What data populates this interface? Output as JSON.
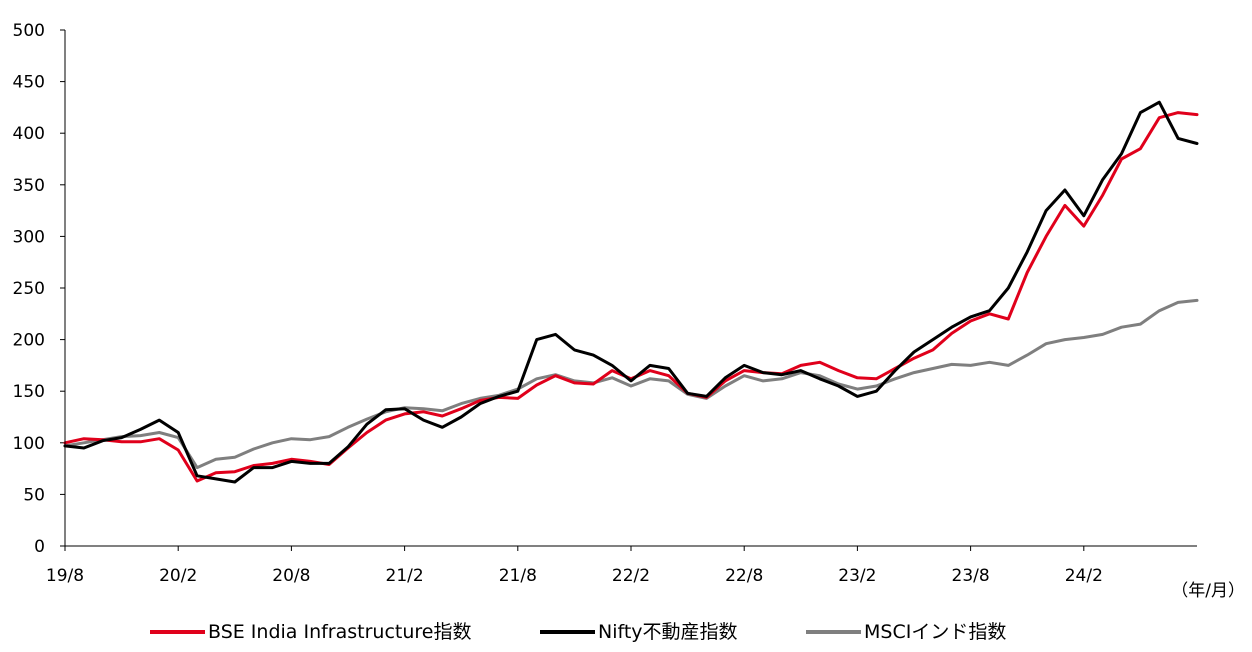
{
  "chart_data": {
    "type": "line",
    "title": "",
    "xlabel": "",
    "ylabel": "",
    "x_unit_label": "（年/月）",
    "ylim": [
      0,
      500
    ],
    "yticks": [
      0,
      50,
      100,
      150,
      200,
      250,
      300,
      350,
      400,
      450,
      500
    ],
    "xlim": [
      "2019-08",
      "2024-08"
    ],
    "xtick_labels": [
      "19/8",
      "20/2",
      "20/8",
      "21/2",
      "21/8",
      "22/2",
      "22/8",
      "23/2",
      "23/8",
      "24/2"
    ],
    "grid": false,
    "legend_position": "bottom",
    "series": [
      {
        "name": "BSE India Infrastructure指数",
        "color": "#e0001b",
        "points": [
          [
            "2019-08",
            100
          ],
          [
            "2019-09",
            104
          ],
          [
            "2019-10",
            103
          ],
          [
            "2019-11",
            101
          ],
          [
            "2019-12",
            101
          ],
          [
            "2020-01",
            104
          ],
          [
            "2020-02",
            93
          ],
          [
            "2020-03",
            63
          ],
          [
            "2020-04",
            71
          ],
          [
            "2020-05",
            72
          ],
          [
            "2020-06",
            78
          ],
          [
            "2020-07",
            80
          ],
          [
            "2020-08",
            84
          ],
          [
            "2020-09",
            82
          ],
          [
            "2020-10",
            79
          ],
          [
            "2020-11",
            95
          ],
          [
            "2020-12",
            110
          ],
          [
            "2021-01",
            122
          ],
          [
            "2021-02",
            128
          ],
          [
            "2021-03",
            130
          ],
          [
            "2021-04",
            126
          ],
          [
            "2021-05",
            133
          ],
          [
            "2021-06",
            141
          ],
          [
            "2021-07",
            144
          ],
          [
            "2021-08",
            143
          ],
          [
            "2021-09",
            156
          ],
          [
            "2021-10",
            165
          ],
          [
            "2021-11",
            158
          ],
          [
            "2021-12",
            157
          ],
          [
            "2022-01",
            170
          ],
          [
            "2022-02",
            162
          ],
          [
            "2022-03",
            170
          ],
          [
            "2022-04",
            165
          ],
          [
            "2022-05",
            148
          ],
          [
            "2022-06",
            144
          ],
          [
            "2022-07",
            160
          ],
          [
            "2022-08",
            170
          ],
          [
            "2022-09",
            168
          ],
          [
            "2022-10",
            167
          ],
          [
            "2022-11",
            175
          ],
          [
            "2022-12",
            178
          ],
          [
            "2023-01",
            170
          ],
          [
            "2023-02",
            163
          ],
          [
            "2023-03",
            162
          ],
          [
            "2023-04",
            172
          ],
          [
            "2023-05",
            182
          ],
          [
            "2023-06",
            190
          ],
          [
            "2023-07",
            206
          ],
          [
            "2023-08",
            218
          ],
          [
            "2023-09",
            225
          ],
          [
            "2023-10",
            220
          ],
          [
            "2023-11",
            265
          ],
          [
            "2023-12",
            300
          ],
          [
            "2024-01",
            330
          ],
          [
            "2024-02",
            310
          ],
          [
            "2024-03",
            340
          ],
          [
            "2024-04",
            375
          ],
          [
            "2024-05",
            385
          ],
          [
            "2024-06",
            415
          ],
          [
            "2024-07",
            420
          ],
          [
            "2024-08",
            418
          ]
        ]
      },
      {
        "name": "Nifty不動産指数",
        "color": "#000000",
        "points": [
          [
            "2019-08",
            97
          ],
          [
            "2019-09",
            95
          ],
          [
            "2019-10",
            102
          ],
          [
            "2019-11",
            105
          ],
          [
            "2019-12",
            113
          ],
          [
            "2020-01",
            122
          ],
          [
            "2020-02",
            110
          ],
          [
            "2020-03",
            68
          ],
          [
            "2020-04",
            65
          ],
          [
            "2020-05",
            62
          ],
          [
            "2020-06",
            76
          ],
          [
            "2020-07",
            76
          ],
          [
            "2020-08",
            82
          ],
          [
            "2020-09",
            80
          ],
          [
            "2020-10",
            80
          ],
          [
            "2020-11",
            96
          ],
          [
            "2020-12",
            118
          ],
          [
            "2021-01",
            132
          ],
          [
            "2021-02",
            133
          ],
          [
            "2021-03",
            122
          ],
          [
            "2021-04",
            115
          ],
          [
            "2021-05",
            125
          ],
          [
            "2021-06",
            138
          ],
          [
            "2021-07",
            145
          ],
          [
            "2021-08",
            150
          ],
          [
            "2021-09",
            200
          ],
          [
            "2021-10",
            205
          ],
          [
            "2021-11",
            190
          ],
          [
            "2021-12",
            185
          ],
          [
            "2022-01",
            175
          ],
          [
            "2022-02",
            160
          ],
          [
            "2022-03",
            175
          ],
          [
            "2022-04",
            172
          ],
          [
            "2022-05",
            148
          ],
          [
            "2022-06",
            145
          ],
          [
            "2022-07",
            163
          ],
          [
            "2022-08",
            175
          ],
          [
            "2022-09",
            168
          ],
          [
            "2022-10",
            166
          ],
          [
            "2022-11",
            170
          ],
          [
            "2022-12",
            162
          ],
          [
            "2023-01",
            155
          ],
          [
            "2023-02",
            145
          ],
          [
            "2023-03",
            150
          ],
          [
            "2023-04",
            170
          ],
          [
            "2023-05",
            188
          ],
          [
            "2023-06",
            200
          ],
          [
            "2023-07",
            212
          ],
          [
            "2023-08",
            222
          ],
          [
            "2023-09",
            228
          ],
          [
            "2023-10",
            250
          ],
          [
            "2023-11",
            285
          ],
          [
            "2023-12",
            325
          ],
          [
            "2024-01",
            345
          ],
          [
            "2024-02",
            320
          ],
          [
            "2024-03",
            355
          ],
          [
            "2024-04",
            380
          ],
          [
            "2024-05",
            420
          ],
          [
            "2024-06",
            430
          ],
          [
            "2024-07",
            395
          ],
          [
            "2024-08",
            390
          ]
        ]
      },
      {
        "name": "MSCIインド指数",
        "color": "#7f7f7f",
        "points": [
          [
            "2019-08",
            97
          ],
          [
            "2019-09",
            100
          ],
          [
            "2019-10",
            103
          ],
          [
            "2019-11",
            106
          ],
          [
            "2019-12",
            107
          ],
          [
            "2020-01",
            110
          ],
          [
            "2020-02",
            105
          ],
          [
            "2020-03",
            76
          ],
          [
            "2020-04",
            84
          ],
          [
            "2020-05",
            86
          ],
          [
            "2020-06",
            94
          ],
          [
            "2020-07",
            100
          ],
          [
            "2020-08",
            104
          ],
          [
            "2020-09",
            103
          ],
          [
            "2020-10",
            106
          ],
          [
            "2020-11",
            115
          ],
          [
            "2020-12",
            123
          ],
          [
            "2021-01",
            130
          ],
          [
            "2021-02",
            134
          ],
          [
            "2021-03",
            133
          ],
          [
            "2021-04",
            131
          ],
          [
            "2021-05",
            138
          ],
          [
            "2021-06",
            143
          ],
          [
            "2021-07",
            146
          ],
          [
            "2021-08",
            152
          ],
          [
            "2021-09",
            162
          ],
          [
            "2021-10",
            166
          ],
          [
            "2021-11",
            160
          ],
          [
            "2021-12",
            158
          ],
          [
            "2022-01",
            163
          ],
          [
            "2022-02",
            155
          ],
          [
            "2022-03",
            162
          ],
          [
            "2022-04",
            160
          ],
          [
            "2022-05",
            147
          ],
          [
            "2022-06",
            143
          ],
          [
            "2022-07",
            155
          ],
          [
            "2022-08",
            165
          ],
          [
            "2022-09",
            160
          ],
          [
            "2022-10",
            162
          ],
          [
            "2022-11",
            168
          ],
          [
            "2022-12",
            165
          ],
          [
            "2023-01",
            157
          ],
          [
            "2023-02",
            152
          ],
          [
            "2023-03",
            155
          ],
          [
            "2023-04",
            162
          ],
          [
            "2023-05",
            168
          ],
          [
            "2023-06",
            172
          ],
          [
            "2023-07",
            176
          ],
          [
            "2023-08",
            175
          ],
          [
            "2023-09",
            178
          ],
          [
            "2023-10",
            175
          ],
          [
            "2023-11",
            185
          ],
          [
            "2023-12",
            196
          ],
          [
            "2024-01",
            200
          ],
          [
            "2024-02",
            202
          ],
          [
            "2024-03",
            205
          ],
          [
            "2024-04",
            212
          ],
          [
            "2024-05",
            215
          ],
          [
            "2024-06",
            228
          ],
          [
            "2024-07",
            236
          ],
          [
            "2024-08",
            238
          ]
        ]
      }
    ]
  }
}
